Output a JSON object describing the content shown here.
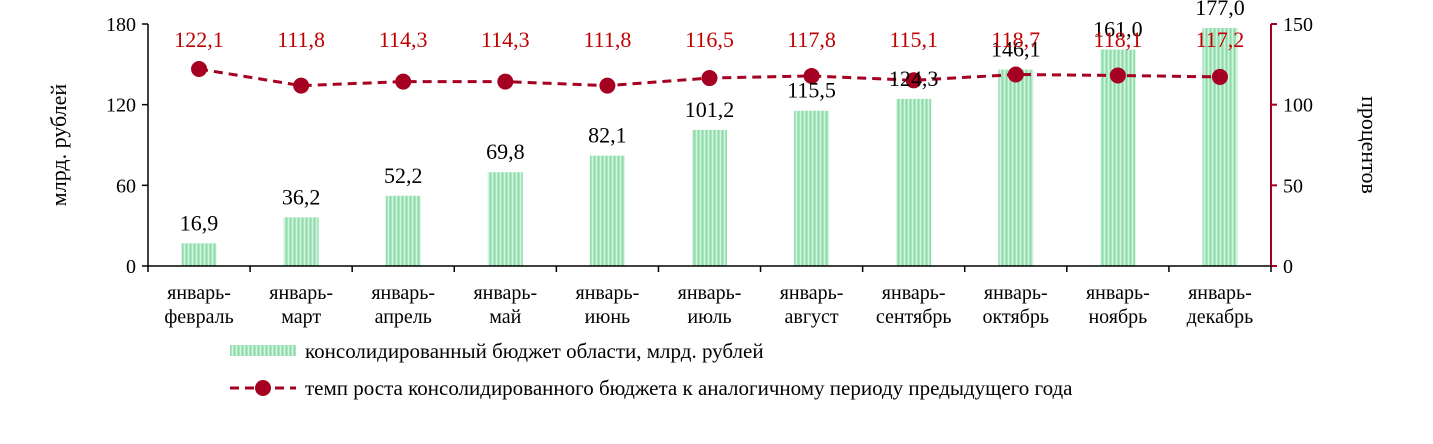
{
  "chart_data": {
    "type": "bar",
    "categories": [
      [
        "январь-",
        "февраль"
      ],
      [
        "январь-",
        "март"
      ],
      [
        "январь-",
        "апрель"
      ],
      [
        "январь-",
        "май"
      ],
      [
        "январь-",
        "июнь"
      ],
      [
        "январь-",
        "июль"
      ],
      [
        "январь-",
        "август"
      ],
      [
        "январь-",
        "сентябрь"
      ],
      [
        "январь-",
        "октябрь"
      ],
      [
        "январь-",
        "ноябрь"
      ],
      [
        "январь-",
        "декабрь"
      ]
    ],
    "ylabel": "млрд. рублей",
    "y2label": "процентов",
    "ylim": [
      0,
      180
    ],
    "y2lim": [
      0,
      150
    ],
    "yticks": [
      "0",
      "60",
      "120",
      "180"
    ],
    "y2ticks": [
      "0",
      "50",
      "100",
      "150"
    ],
    "series": [
      {
        "name": "консолидированный бюджет области, млрд. рублей",
        "type": "bar",
        "axis": "left",
        "color": "#a8e6bf",
        "values": [
          16.9,
          36.2,
          52.2,
          69.8,
          82.1,
          101.2,
          115.5,
          124.3,
          146.1,
          161.0,
          177.0
        ],
        "labels": [
          "16,9",
          "36,2",
          "52,2",
          "69,8",
          "82,1",
          "101,2",
          "115,5",
          "124,3",
          "146,1",
          "161,0",
          "177,0"
        ]
      },
      {
        "name": "темп роста консолидированного  бюджета к аналогичному периоду  предыдущего  года",
        "type": "line",
        "axis": "right",
        "color": "#a50021",
        "values": [
          122.1,
          111.8,
          114.3,
          114.3,
          111.8,
          116.5,
          117.8,
          115.1,
          118.7,
          118.1,
          117.2
        ],
        "labels": [
          "122,1",
          "111,8",
          "114,3",
          "114,3",
          "111,8",
          "116,5",
          "117,8",
          "115,1",
          "118,7",
          "118,1",
          "117,2"
        ]
      }
    ],
    "legend_position": "bottom",
    "grid": false
  }
}
